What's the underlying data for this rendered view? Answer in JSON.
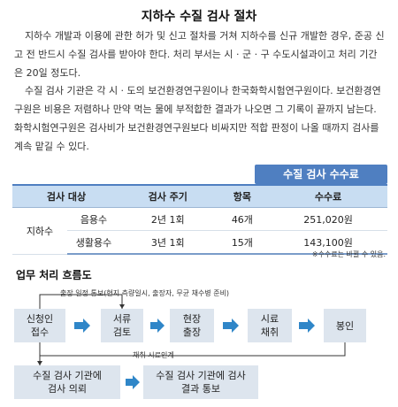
{
  "title": "지하수 수질 검사 절차",
  "para1": "지하수 개발과 이용에 관한 허가 및 신고 절차를 거쳐 지하수를 신규 개발한 경우, 준공 신고 전 반드시 수질 검사를 받아야 한다. 처리 부서는 시 · 군 · 구 수도시설과이고 처리 기간은 20일 정도다.",
  "para2": "수질 검사 기관은 각 시 · 도의 보건환경연구원이나 한국화학시험연구원이다. 보건환경연구원은 비용은 저렴하나 만약 먹는 물에 부적합한 결과가 나오면 그 기록이 끝까지 남는다. 화학시험연구원은 검사비가 보건환경연구원보다 비싸지만 적합 판정이 나올 때까지 검사를 계속 맡길 수 있다.",
  "fee_table": {
    "tag": "수질 검사 수수료",
    "headers": [
      "검사 대상",
      "검사 주기",
      "항목",
      "수수료"
    ],
    "category": "지하수",
    "rows": [
      {
        "sub": "음용수",
        "cycle": "2년 1회",
        "items": "46개",
        "fee": "251,020원"
      },
      {
        "sub": "생활용수",
        "cycle": "3년 1회",
        "items": "15개",
        "fee": "143,100원"
      }
    ],
    "note": "※수수료는 바뀔 수 있음."
  },
  "flow": {
    "title": "업무 처리 흐름도",
    "top_label": "출장 일정 통보(현지 측량일시, 출장자, 무균 채수병 준비)",
    "bottom_label": "채취 시료인계",
    "steps": [
      "신청인\n접수",
      "서류\n검토",
      "현장\n출장",
      "시료\n채취",
      "봉인"
    ],
    "lower_steps": [
      "수질 검사 기관에\n검사 의뢰",
      "수질 검사 기관에 검사\n결과 통보"
    ]
  },
  "colors": {
    "accent": "#4f7fc1",
    "box": "#dde5ee",
    "arrow": "#2f86c8"
  }
}
